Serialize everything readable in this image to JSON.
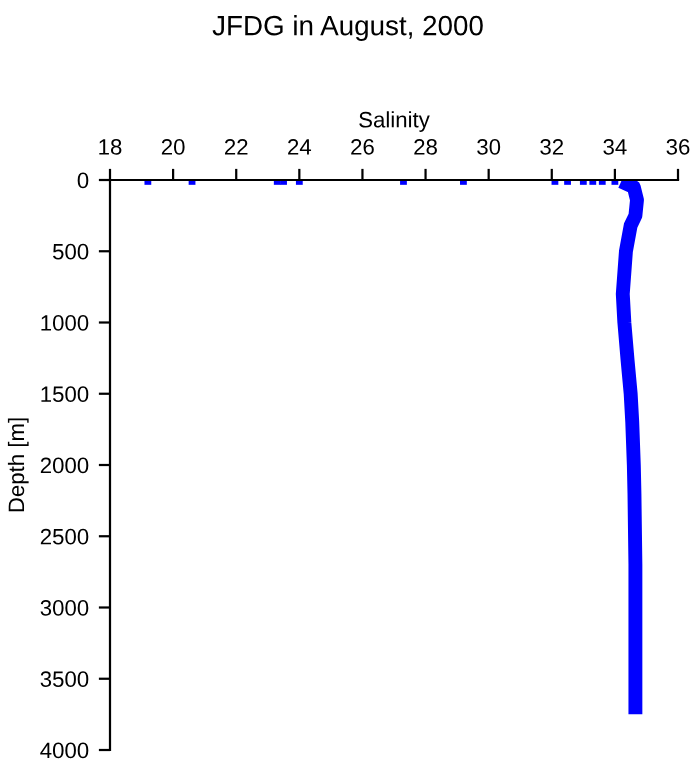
{
  "chart_data": {
    "type": "line",
    "title": "JFDG in August, 2000",
    "xlabel": "Salinity",
    "ylabel": "Depth [m]",
    "xlim": [
      18,
      36
    ],
    "xticks": [
      18,
      20,
      22,
      24,
      26,
      28,
      30,
      32,
      34,
      36
    ],
    "ylim": [
      4000,
      0
    ],
    "yticks": [
      0,
      500,
      1000,
      1500,
      2000,
      2500,
      3000,
      3500,
      4000
    ],
    "series": [
      {
        "color": "#0000ff",
        "x": [
          34.2,
          34.6,
          34.7,
          34.65,
          34.5,
          34.35,
          34.25,
          34.3,
          34.4,
          34.5,
          34.55,
          34.6,
          34.62,
          34.65,
          34.65,
          34.65
        ],
        "values": [
          10,
          50,
          140,
          250,
          320,
          500,
          800,
          1000,
          1260,
          1500,
          1700,
          2000,
          2200,
          2700,
          3100,
          3750
        ]
      },
      {
        "type": "scatter",
        "color": "#0000ff",
        "marker": "square",
        "x": [
          19.2,
          20.6,
          23.3,
          23.5,
          24.0,
          27.3,
          29.2,
          32.1,
          32.5,
          33.0,
          33.3,
          33.6,
          34.0
        ],
        "values": [
          10,
          10,
          10,
          10,
          10,
          10,
          10,
          10,
          10,
          10,
          10,
          10,
          10
        ]
      }
    ],
    "grid": false,
    "legend": false
  }
}
